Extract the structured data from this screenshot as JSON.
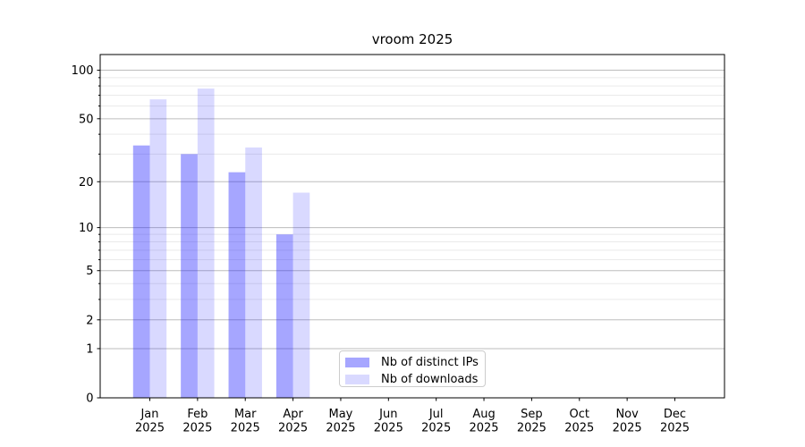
{
  "chart_data": {
    "type": "bar",
    "title": "vroom 2025",
    "categories": [
      "Jan 2025",
      "Feb 2025",
      "Mar 2025",
      "Apr 2025",
      "May 2025",
      "Jun 2025",
      "Jul 2025",
      "Aug 2025",
      "Sep 2025",
      "Oct 2025",
      "Nov 2025",
      "Dec 2025"
    ],
    "series": [
      {
        "name": "Nb of distinct IPs",
        "color": "rgba(26,26,255,0.39)",
        "values": [
          34,
          30,
          23,
          9,
          null,
          null,
          null,
          null,
          null,
          null,
          null,
          null
        ]
      },
      {
        "name": "Nb of downloads",
        "color": "rgba(26,26,255,0.165)",
        "values": [
          66,
          77,
          33,
          17,
          null,
          null,
          null,
          null,
          null,
          null,
          null,
          null
        ]
      }
    ],
    "xlabel": "",
    "ylabel": "",
    "y_scale": "log1p",
    "y_ticks": [
      0,
      1,
      2,
      5,
      10,
      20,
      50,
      100
    ],
    "y_minor_ticks": [
      3,
      4,
      6,
      7,
      8,
      9,
      30,
      40,
      60,
      70,
      80,
      90
    ],
    "ylim": [
      0,
      125
    ],
    "grid": "major-and-minor",
    "legend_position": "lower center",
    "colors": {
      "major_grid": "#bdbdbd",
      "minor_grid": "#eaeaea",
      "axis": "#000000",
      "text": "#000000",
      "legend_border": "#cccccc",
      "background": "#ffffff"
    }
  }
}
